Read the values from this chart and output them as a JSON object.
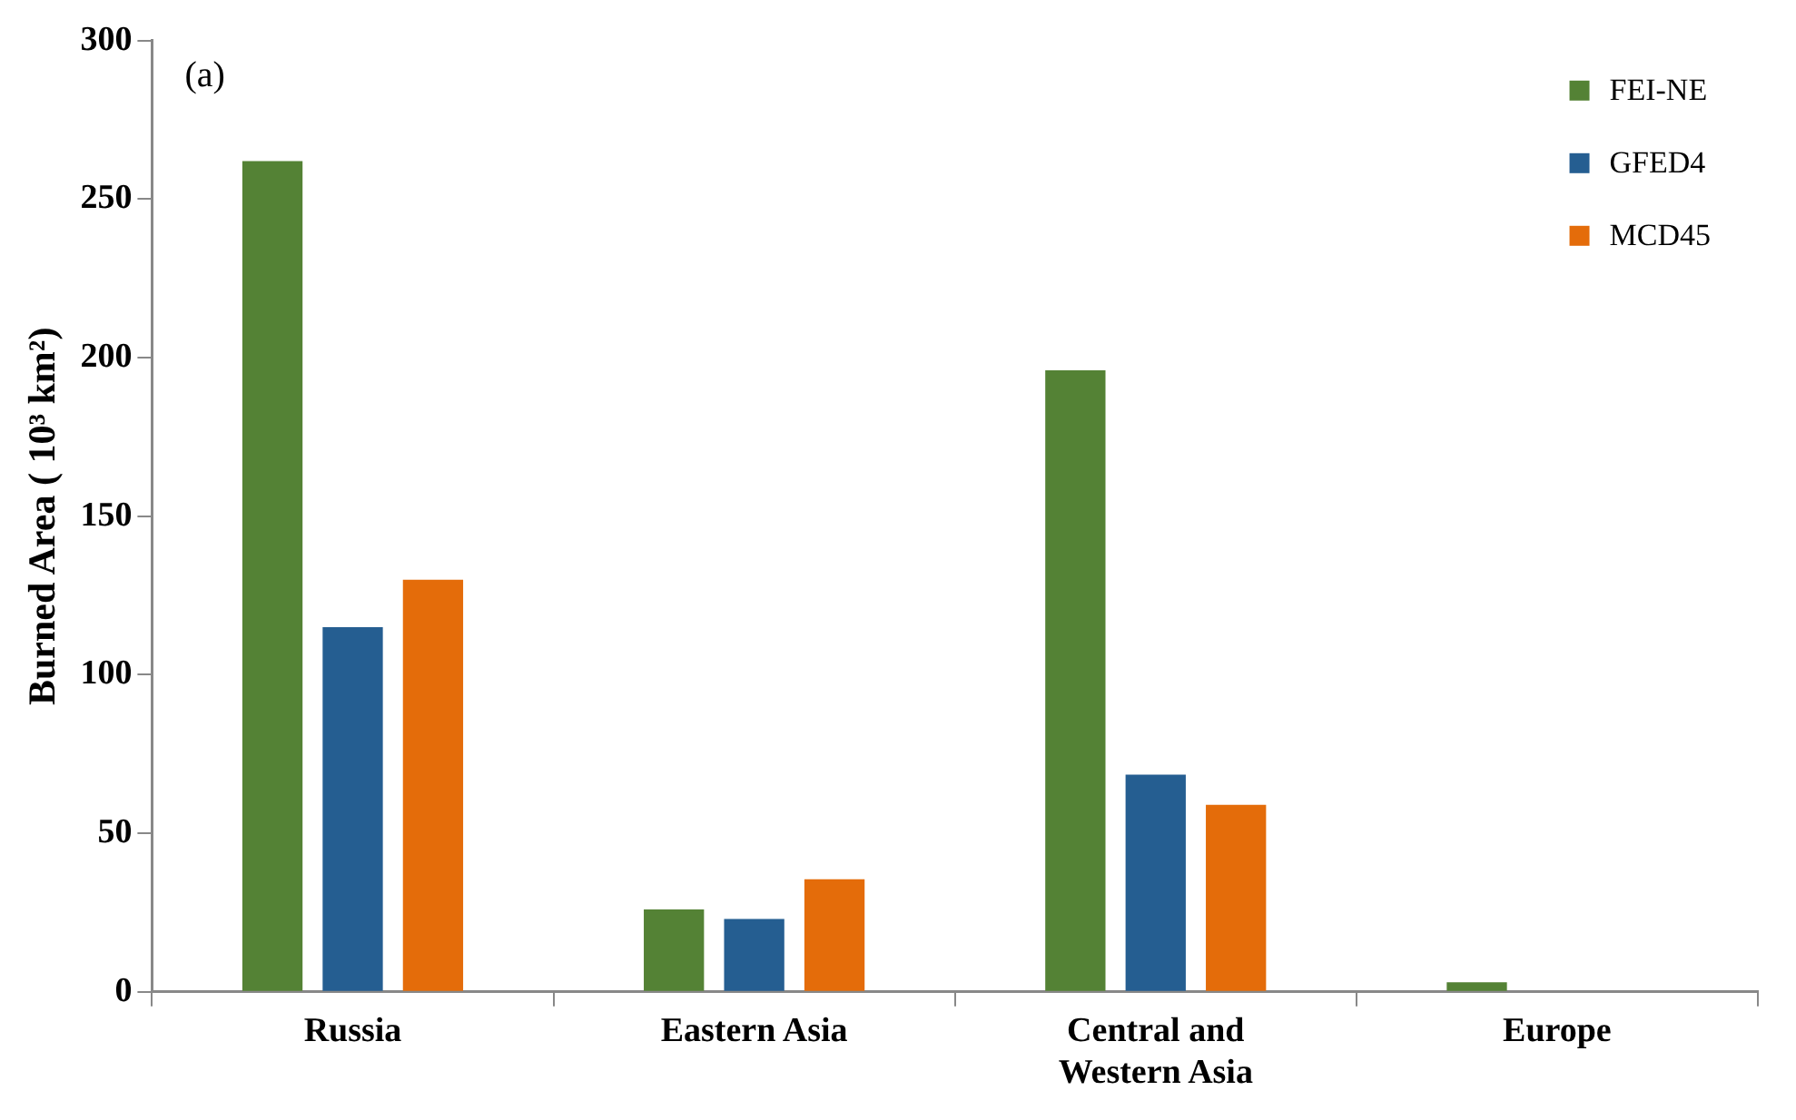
{
  "chart_data": {
    "type": "bar",
    "ylabel": "Burned Area ( 10³ km²)",
    "categories": [
      "Russia",
      "Eastern Asia",
      "Central and Western Asia",
      "Europe"
    ],
    "series": [
      {
        "name": "FEI-NE",
        "color": "#548235",
        "values": [
          262,
          26,
          196,
          3
        ]
      },
      {
        "name": "GFED4",
        "color": "#255e91",
        "values": [
          115,
          23,
          68.5,
          0
        ]
      },
      {
        "name": "MCD45",
        "color": "#e46c0a",
        "values": [
          130,
          35.5,
          59,
          0
        ]
      }
    ],
    "ylim": [
      0,
      300
    ],
    "yticks": [
      0,
      50,
      100,
      150,
      200,
      250,
      300
    ],
    "grid": false,
    "legend": "top right",
    "annotations": [
      "(a)"
    ]
  }
}
